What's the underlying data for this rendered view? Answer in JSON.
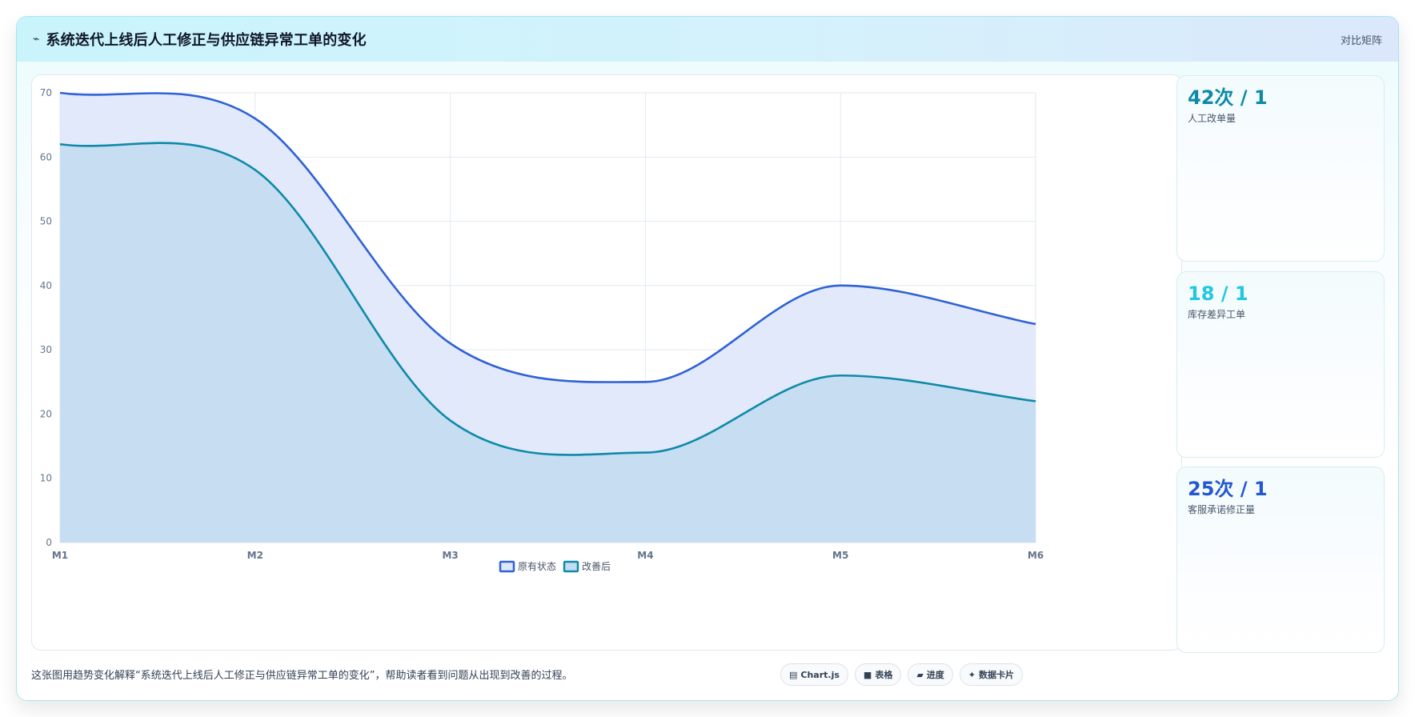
{
  "header": {
    "title": "系统迭代上线后人工修正与供应链异常工单的变化",
    "right_label": "对比矩阵",
    "icon": "wave-icon"
  },
  "colors": {
    "series_original": "#2f62d6",
    "series_improved": "#0e8aa8",
    "fill_original": "#dfe8fb",
    "fill_improved": "#c4dcf1",
    "kpi_1": "#0e8aa8",
    "kpi_2": "#22c7e0",
    "kpi_3": "#2458d0"
  },
  "chart_data": {
    "type": "area",
    "categories": [
      "M1",
      "M2",
      "M3",
      "M4",
      "M5",
      "M6"
    ],
    "series": [
      {
        "name": "原有状态",
        "values": [
          70,
          66,
          31,
          25,
          40,
          34
        ]
      },
      {
        "name": "改善后",
        "values": [
          62,
          58,
          19,
          14,
          26,
          22
        ]
      }
    ],
    "yticks": [
      "0",
      "10",
      "20",
      "30",
      "40",
      "50",
      "60",
      "70"
    ],
    "ylim": [
      0,
      70
    ],
    "grid": true,
    "legend_position": "bottom",
    "title": "",
    "xlabel": "",
    "ylabel": ""
  },
  "kpis": [
    {
      "value": "42次 / 1",
      "label": "人工改单量"
    },
    {
      "value": "18 / 1",
      "label": "库存差异工单"
    },
    {
      "value": "25次 / 1",
      "label": "客服承诺修正量"
    }
  ],
  "footer": {
    "description": "这张图用趋势变化解释“系统迭代上线后人工修正与供应链异常工单的变化”，帮助读者看到问题从出现到改善的过程。",
    "tags": [
      {
        "icon": "chart-icon",
        "glyph": "▤",
        "label": "Chart.js"
      },
      {
        "icon": "table-icon",
        "glyph": "■",
        "label": "表格"
      },
      {
        "icon": "progress-icon",
        "glyph": "▰",
        "label": "进度"
      },
      {
        "icon": "sparkle-icon",
        "glyph": "✦",
        "label": "数据卡片"
      }
    ]
  }
}
